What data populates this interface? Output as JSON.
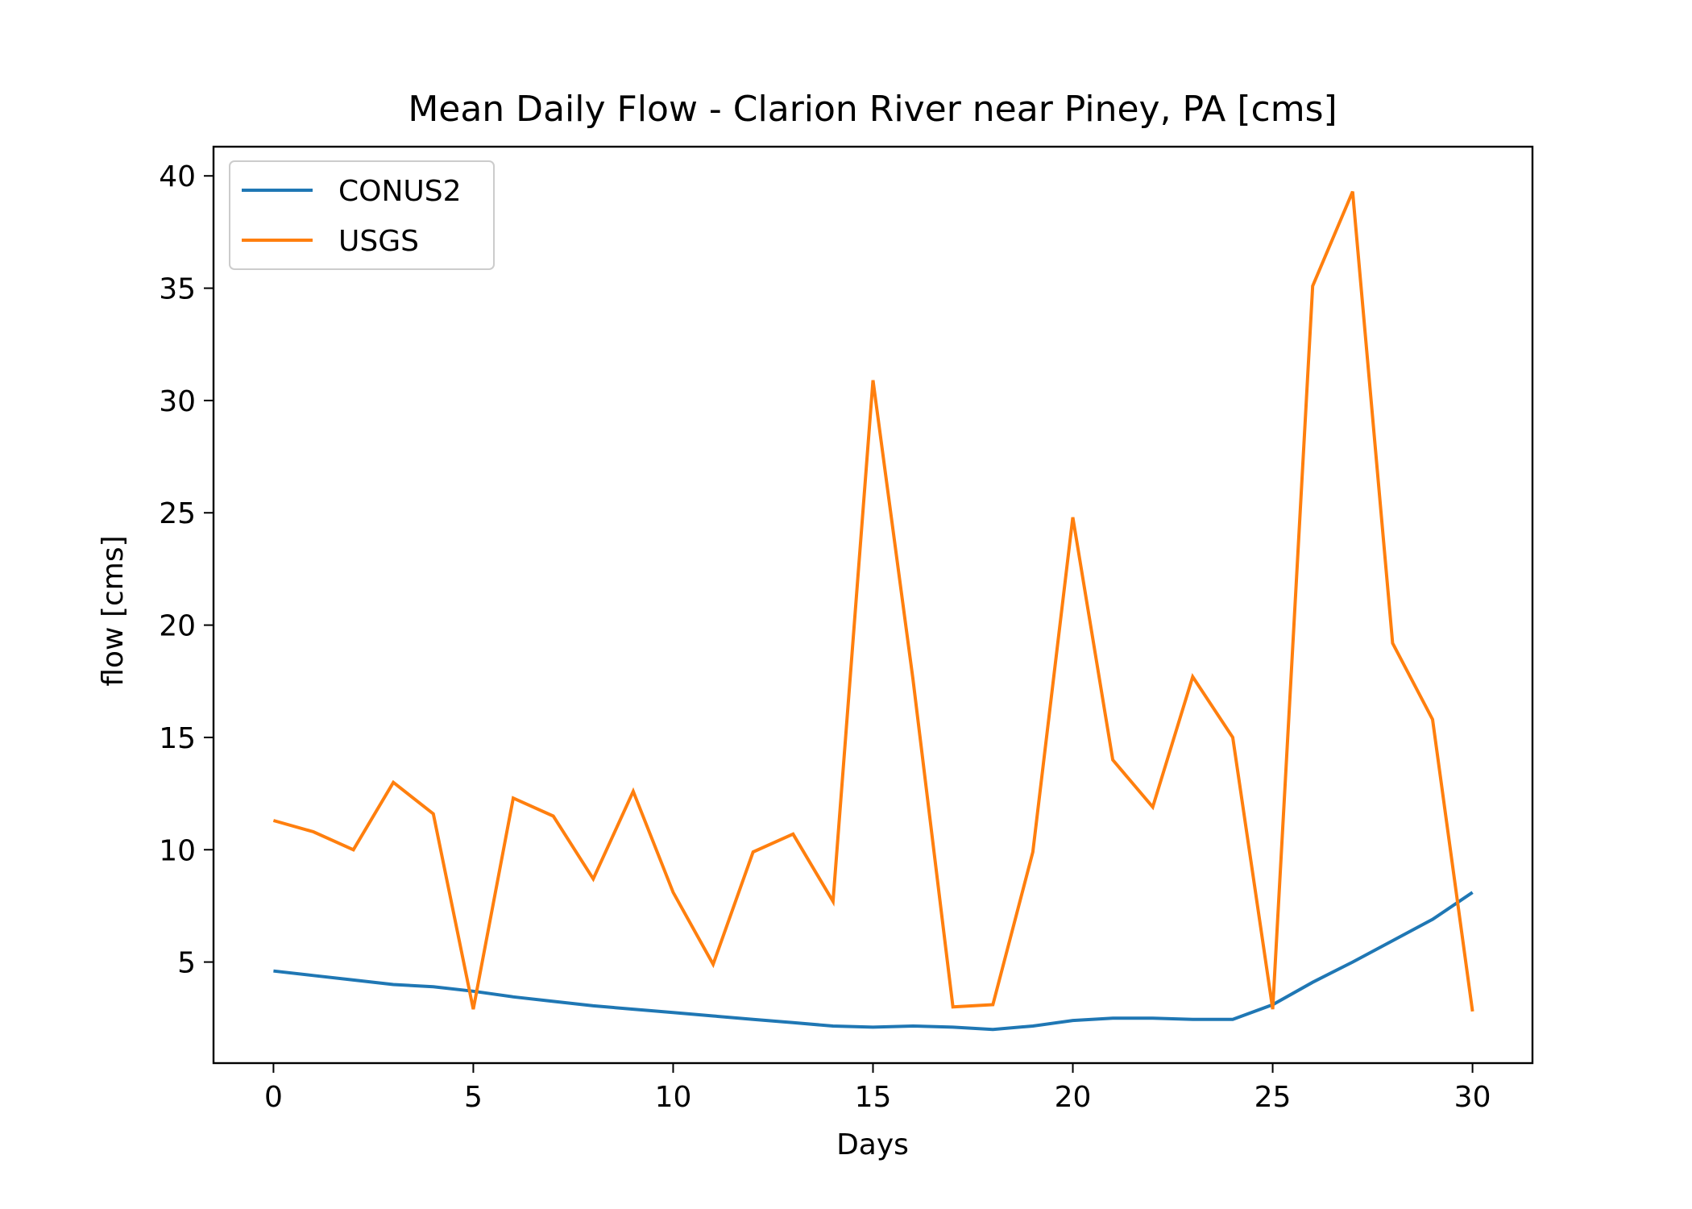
{
  "chart_data": {
    "type": "line",
    "title": "Mean Daily Flow - Clarion River near Piney, PA [cms]",
    "xlabel": "Days",
    "ylabel": "flow [cms]",
    "xlim": [
      -1.5,
      31.5
    ],
    "ylim": [
      0.5,
      41.3
    ],
    "xticks": [
      0,
      5,
      10,
      15,
      20,
      25,
      30
    ],
    "yticks": [
      5,
      10,
      15,
      20,
      25,
      30,
      35,
      40
    ],
    "grid": false,
    "legend_position": "upper-left",
    "x": [
      0,
      1,
      2,
      3,
      4,
      5,
      6,
      7,
      8,
      9,
      10,
      11,
      12,
      13,
      14,
      15,
      16,
      17,
      18,
      19,
      20,
      21,
      22,
      23,
      24,
      25,
      26,
      27,
      28,
      29,
      30
    ],
    "series": [
      {
        "name": "CONUS2",
        "color": "#1f77b4",
        "values": [
          4.6,
          4.4,
          4.2,
          4.0,
          3.9,
          3.7,
          3.45,
          3.25,
          3.05,
          2.9,
          2.75,
          2.6,
          2.45,
          2.3,
          2.15,
          2.1,
          2.15,
          2.1,
          2.0,
          2.15,
          2.4,
          2.5,
          2.5,
          2.45,
          2.45,
          3.1,
          4.1,
          5.0,
          5.95,
          6.9,
          8.1
        ]
      },
      {
        "name": "USGS",
        "color": "#ff7f0e",
        "values": [
          11.3,
          10.8,
          10.0,
          13.0,
          11.6,
          2.9,
          12.3,
          11.5,
          8.7,
          12.6,
          8.1,
          4.9,
          9.9,
          10.7,
          7.7,
          30.9,
          17.6,
          3.0,
          3.1,
          9.9,
          24.8,
          14.0,
          11.9,
          17.7,
          15.0,
          2.9,
          35.1,
          39.3,
          19.2,
          15.8,
          2.8
        ]
      }
    ]
  }
}
